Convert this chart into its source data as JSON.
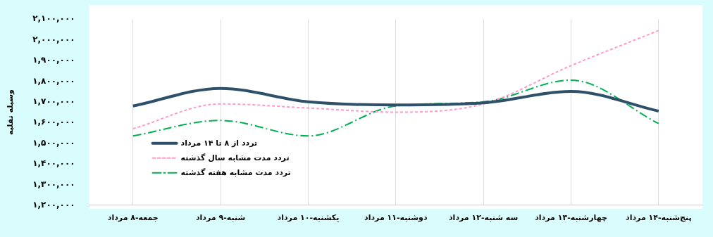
{
  "chart_data": {
    "type": "line",
    "ylabel": "وسیله نقلیه",
    "categories": [
      "جمعه-۸ مرداد",
      "شنبه-۹ مرداد",
      "یکشنبه-۱۰ مرداد",
      "دوشنبه-۱۱ مرداد",
      "سه شنبه-۱۲ مرداد",
      "چهارشنبه-۱۳ مرداد",
      "پنج‌شنبه-۱۴ مرداد"
    ],
    "series": [
      {
        "name": "تردد از ۸ تا ۱۴ مرداد",
        "color": "#2e5068",
        "line_style": "solid",
        "values": [
          1680000,
          1765000,
          1700000,
          1685000,
          1695000,
          1750000,
          1655000
        ]
      },
      {
        "name": "تردد مدت مشابه سال گذشته",
        "color": "#ff99cc",
        "line_style": "dotted",
        "values": [
          1570000,
          1690000,
          1670000,
          1650000,
          1690000,
          1875000,
          2045000
        ]
      },
      {
        "name": "تردد مدت مشابه هفته گذشته",
        "color": "#00b050",
        "line_style": "dashed",
        "values": [
          1535000,
          1610000,
          1535000,
          1680000,
          1700000,
          1805000,
          1595000
        ]
      }
    ],
    "ylim": [
      1200000,
      2100000
    ],
    "yticks": [
      {
        "value": 1200000,
        "label": "۱,۲۰۰,۰۰۰"
      },
      {
        "value": 1300000,
        "label": "۱,۳۰۰,۰۰۰"
      },
      {
        "value": 1400000,
        "label": "۱,۴۰۰,۰۰۰"
      },
      {
        "value": 1500000,
        "label": "۱,۵۰۰,۰۰۰"
      },
      {
        "value": 1600000,
        "label": "۱,۶۰۰,۰۰۰"
      },
      {
        "value": 1700000,
        "label": "۱,۷۰۰,۰۰۰"
      },
      {
        "value": 1800000,
        "label": "۱,۸۰۰,۰۰۰"
      },
      {
        "value": 1900000,
        "label": "۱,۹۰۰,۰۰۰"
      },
      {
        "value": 2000000,
        "label": "۲,۰۰۰,۰۰۰"
      },
      {
        "value": 2100000,
        "label": "۲,۱۰۰,۰۰۰"
      }
    ],
    "grid": "x",
    "legend": "bottom left",
    "marker": "none"
  }
}
